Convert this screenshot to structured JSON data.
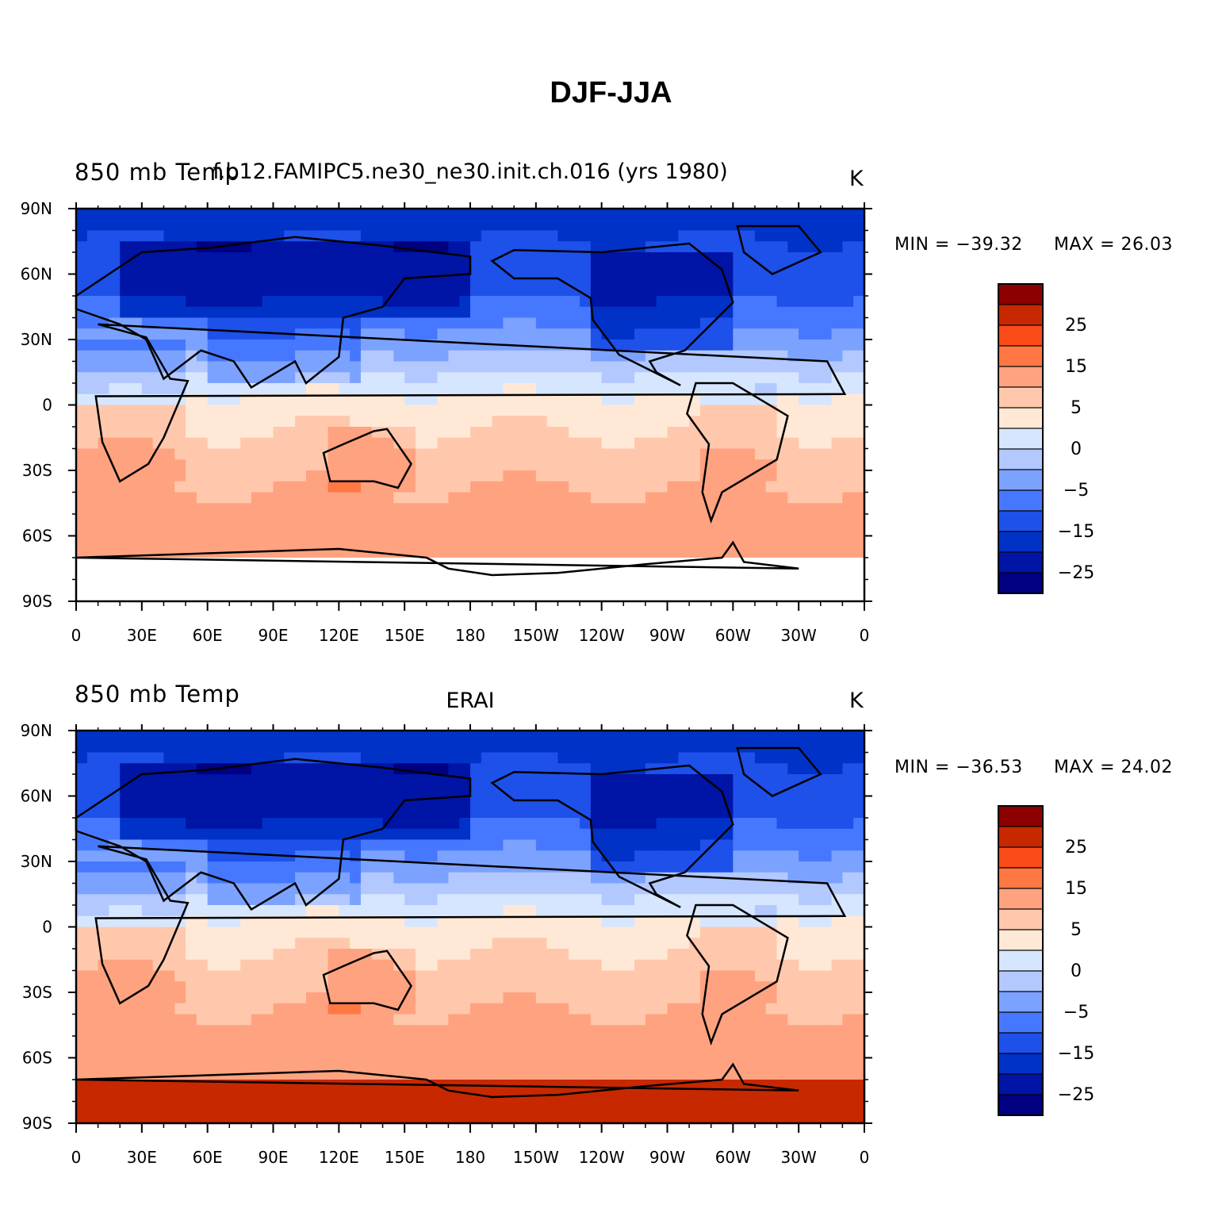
{
  "title": "DJF-JJA",
  "colors": {
    "levels": [
      "#000080",
      "#0014a6",
      "#0032c8",
      "#1e50ea",
      "#4678ff",
      "#7ca2ff",
      "#b2c8ff",
      "#d6e6ff",
      "#ffe8d6",
      "#ffc8ad",
      "#ffa280",
      "#ff7843",
      "#fa4b19",
      "#c82800",
      "#8c0000"
    ],
    "coast": "#000000",
    "missing": "#ffffff"
  },
  "colorbar": {
    "labels": [
      "25",
      "15",
      "5",
      "0",
      "−5",
      "−15",
      "−25"
    ]
  },
  "axes": {
    "lat_labels": [
      "90N",
      "60N",
      "30N",
      "0",
      "30S",
      "60S",
      "90S"
    ],
    "lon_labels": [
      "0",
      "30E",
      "60E",
      "90E",
      "120E",
      "150E",
      "180",
      "150W",
      "120W",
      "90W",
      "60W",
      "30W",
      "0"
    ]
  },
  "panels": [
    {
      "id": "model",
      "left_label": "850 mb Temp",
      "center_label": "f.b12.FAMIPC5.ne30_ne30.init.ch.016 (yrs 1980)",
      "units": "K",
      "min_text": "MIN = −39.32",
      "max_text": "MAX =  26.03",
      "min": -39.32,
      "max": 26.03
    },
    {
      "id": "obs",
      "left_label": "850 mb Temp",
      "center_label": "ERAI",
      "units": "K",
      "min_text": "MIN = −36.53",
      "max_text": "MAX =  24.02",
      "min": -36.53,
      "max": 24.02
    }
  ]
}
